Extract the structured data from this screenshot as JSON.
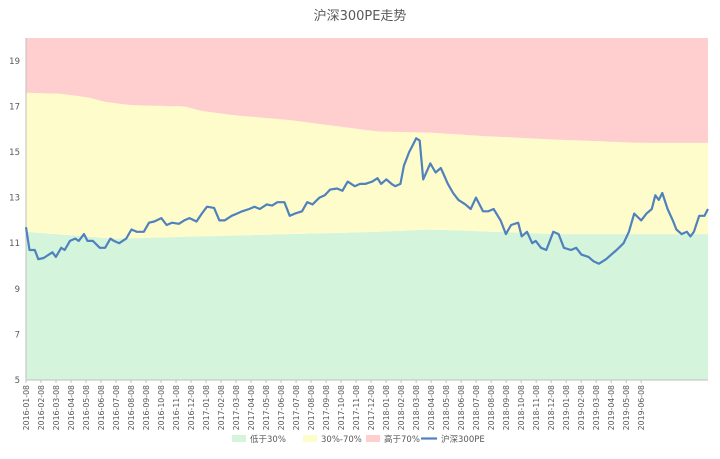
{
  "chart_data": {
    "type": "area",
    "title": "沪深300PE走势",
    "xlabel": "",
    "ylabel": "",
    "ylim": [
      5,
      20
    ],
    "yticks": [
      5,
      7,
      9,
      11,
      13,
      15,
      17,
      19
    ],
    "grid": false,
    "legend_position": "bottom",
    "colors": {
      "low": "#d4f5dc",
      "mid": "#fffccc",
      "high": "#ffcfcf",
      "line": "#4f81bd",
      "axis": "#bfbfbf",
      "text": "#595959"
    },
    "x_labels": [
      "2016-01-08",
      "2016-02-08",
      "2016-03-08",
      "2016-04-08",
      "2016-05-08",
      "2016-06-08",
      "2016-07-08",
      "2016-08-08",
      "2016-09-08",
      "2016-10-08",
      "2016-11-08",
      "2016-12-08",
      "2017-01-08",
      "2017-02-08",
      "2017-03-08",
      "2017-04-08",
      "2017-05-08",
      "2017-06-08",
      "2017-07-08",
      "2017-08-08",
      "2017-09-08",
      "2017-10-08",
      "2017-11-08",
      "2017-12-08",
      "2018-01-08",
      "2018-02-08",
      "2018-03-08",
      "2018-04-08",
      "2018-05-08",
      "2018-06-08",
      "2018-07-08",
      "2018-08-08",
      "2018-09-08",
      "2018-10-08",
      "2018-11-08",
      "2018-12-08",
      "2019-01-08",
      "2019-02-08",
      "2019-03-08",
      "2019-04-08",
      "2019-05-08",
      "2019-06-08"
    ],
    "x_end": 2019.5,
    "legend": [
      {
        "key": "low",
        "label": "低于30%",
        "kind": "area"
      },
      {
        "key": "mid",
        "label": "30%-70%",
        "kind": "area"
      },
      {
        "key": "high",
        "label": "高于70%",
        "kind": "area"
      },
      {
        "key": "line",
        "label": "沪深300PE",
        "kind": "line"
      }
    ],
    "series": [
      {
        "key": "p30",
        "name": "低于30%",
        "points": [
          [
            2016.0,
            11.5
          ],
          [
            2016.5,
            11.2
          ],
          [
            2017.0,
            11.3
          ],
          [
            2017.5,
            11.4
          ],
          [
            2018.0,
            11.5
          ],
          [
            2018.3,
            11.6
          ],
          [
            2018.5,
            11.55
          ],
          [
            2019.0,
            11.4
          ],
          [
            2019.5,
            11.4
          ]
        ]
      },
      {
        "key": "p70",
        "name": "30%-70%",
        "points": [
          [
            2016.0,
            17.6
          ],
          [
            2016.2,
            17.55
          ],
          [
            2016.35,
            17.4
          ],
          [
            2016.45,
            17.2
          ],
          [
            2016.6,
            17.05
          ],
          [
            2016.9,
            17.0
          ],
          [
            2017.0,
            16.8
          ],
          [
            2017.2,
            16.6
          ],
          [
            2017.5,
            16.4
          ],
          [
            2017.7,
            16.2
          ],
          [
            2018.0,
            15.9
          ],
          [
            2018.3,
            15.85
          ],
          [
            2018.6,
            15.7
          ],
          [
            2019.0,
            15.55
          ],
          [
            2019.5,
            15.4
          ]
        ]
      },
      {
        "key": "top",
        "name": "高于70%",
        "points": [
          [
            2016.0,
            20.0
          ],
          [
            2019.5,
            20.0
          ]
        ]
      },
      {
        "key": "pe",
        "name": "沪深300PE",
        "points": [
          [
            2016.0,
            11.7
          ],
          [
            2016.02,
            10.7
          ],
          [
            2016.05,
            10.7
          ],
          [
            2016.07,
            10.3
          ],
          [
            2016.1,
            10.35
          ],
          [
            2016.13,
            10.5
          ],
          [
            2016.15,
            10.6
          ],
          [
            2016.17,
            10.4
          ],
          [
            2016.2,
            10.8
          ],
          [
            2016.22,
            10.7
          ],
          [
            2016.25,
            11.1
          ],
          [
            2016.28,
            11.2
          ],
          [
            2016.3,
            11.1
          ],
          [
            2016.33,
            11.4
          ],
          [
            2016.35,
            11.1
          ],
          [
            2016.38,
            11.1
          ],
          [
            2016.42,
            10.8
          ],
          [
            2016.45,
            10.8
          ],
          [
            2016.48,
            11.2
          ],
          [
            2016.5,
            11.1
          ],
          [
            2016.53,
            11.0
          ],
          [
            2016.57,
            11.2
          ],
          [
            2016.6,
            11.6
          ],
          [
            2016.63,
            11.5
          ],
          [
            2016.67,
            11.5
          ],
          [
            2016.7,
            11.9
          ],
          [
            2016.73,
            11.95
          ],
          [
            2016.77,
            12.1
          ],
          [
            2016.8,
            11.8
          ],
          [
            2016.83,
            11.9
          ],
          [
            2016.87,
            11.85
          ],
          [
            2016.9,
            12.0
          ],
          [
            2016.93,
            12.1
          ],
          [
            2016.97,
            11.95
          ],
          [
            2017.0,
            12.3
          ],
          [
            2017.03,
            12.6
          ],
          [
            2017.07,
            12.55
          ],
          [
            2017.1,
            12.0
          ],
          [
            2017.13,
            12.0
          ],
          [
            2017.17,
            12.2
          ],
          [
            2017.2,
            12.3
          ],
          [
            2017.23,
            12.4
          ],
          [
            2017.27,
            12.5
          ],
          [
            2017.3,
            12.6
          ],
          [
            2017.33,
            12.5
          ],
          [
            2017.37,
            12.7
          ],
          [
            2017.4,
            12.65
          ],
          [
            2017.43,
            12.8
          ],
          [
            2017.47,
            12.8
          ],
          [
            2017.5,
            12.2
          ],
          [
            2017.53,
            12.3
          ],
          [
            2017.57,
            12.4
          ],
          [
            2017.6,
            12.8
          ],
          [
            2017.63,
            12.7
          ],
          [
            2017.67,
            13.0
          ],
          [
            2017.7,
            13.1
          ],
          [
            2017.73,
            13.35
          ],
          [
            2017.77,
            13.4
          ],
          [
            2017.8,
            13.3
          ],
          [
            2017.83,
            13.7
          ],
          [
            2017.87,
            13.5
          ],
          [
            2017.9,
            13.6
          ],
          [
            2017.93,
            13.6
          ],
          [
            2017.97,
            13.7
          ],
          [
            2018.0,
            13.85
          ],
          [
            2018.02,
            13.6
          ],
          [
            2018.05,
            13.8
          ],
          [
            2018.08,
            13.6
          ],
          [
            2018.1,
            13.5
          ],
          [
            2018.13,
            13.6
          ],
          [
            2018.15,
            14.4
          ],
          [
            2018.18,
            15.0
          ],
          [
            2018.2,
            15.3
          ],
          [
            2018.22,
            15.6
          ],
          [
            2018.24,
            15.5
          ],
          [
            2018.26,
            13.8
          ],
          [
            2018.3,
            14.5
          ],
          [
            2018.33,
            14.1
          ],
          [
            2018.36,
            14.3
          ],
          [
            2018.4,
            13.6
          ],
          [
            2018.43,
            13.2
          ],
          [
            2018.46,
            12.9
          ],
          [
            2018.5,
            12.7
          ],
          [
            2018.53,
            12.5
          ],
          [
            2018.56,
            13.0
          ],
          [
            2018.6,
            12.4
          ],
          [
            2018.63,
            12.4
          ],
          [
            2018.66,
            12.5
          ],
          [
            2018.7,
            12.0
          ],
          [
            2018.73,
            11.4
          ],
          [
            2018.76,
            11.8
          ],
          [
            2018.8,
            11.9
          ],
          [
            2018.82,
            11.3
          ],
          [
            2018.85,
            11.5
          ],
          [
            2018.88,
            11.0
          ],
          [
            2018.9,
            11.1
          ],
          [
            2018.93,
            10.8
          ],
          [
            2018.96,
            10.7
          ],
          [
            2019.0,
            11.5
          ],
          [
            2019.03,
            11.4
          ],
          [
            2019.06,
            10.8
          ],
          [
            2019.1,
            10.7
          ],
          [
            2019.13,
            10.8
          ],
          [
            2019.16,
            10.5
          ],
          [
            2019.2,
            10.4
          ],
          [
            2019.23,
            10.2
          ],
          [
            2019.26,
            10.1
          ],
          [
            2019.3,
            10.3
          ],
          [
            2019.33,
            10.5
          ],
          [
            2019.36,
            10.7
          ],
          [
            2019.4,
            11.0
          ],
          [
            2019.43,
            11.5
          ],
          [
            2019.46,
            12.3
          ],
          [
            2019.5,
            12.0
          ],
          [
            2019.53,
            12.3
          ],
          [
            2019.56,
            12.5
          ],
          [
            2019.58,
            13.1
          ],
          [
            2019.6,
            12.9
          ],
          [
            2019.62,
            13.2
          ],
          [
            2019.65,
            12.5
          ],
          [
            2019.68,
            12.0
          ],
          [
            2019.7,
            11.6
          ],
          [
            2019.73,
            11.4
          ],
          [
            2019.76,
            11.5
          ],
          [
            2019.78,
            11.3
          ],
          [
            2019.8,
            11.5
          ],
          [
            2019.83,
            12.2
          ],
          [
            2019.86,
            12.2
          ],
          [
            2019.88,
            12.5
          ]
        ]
      }
    ]
  }
}
